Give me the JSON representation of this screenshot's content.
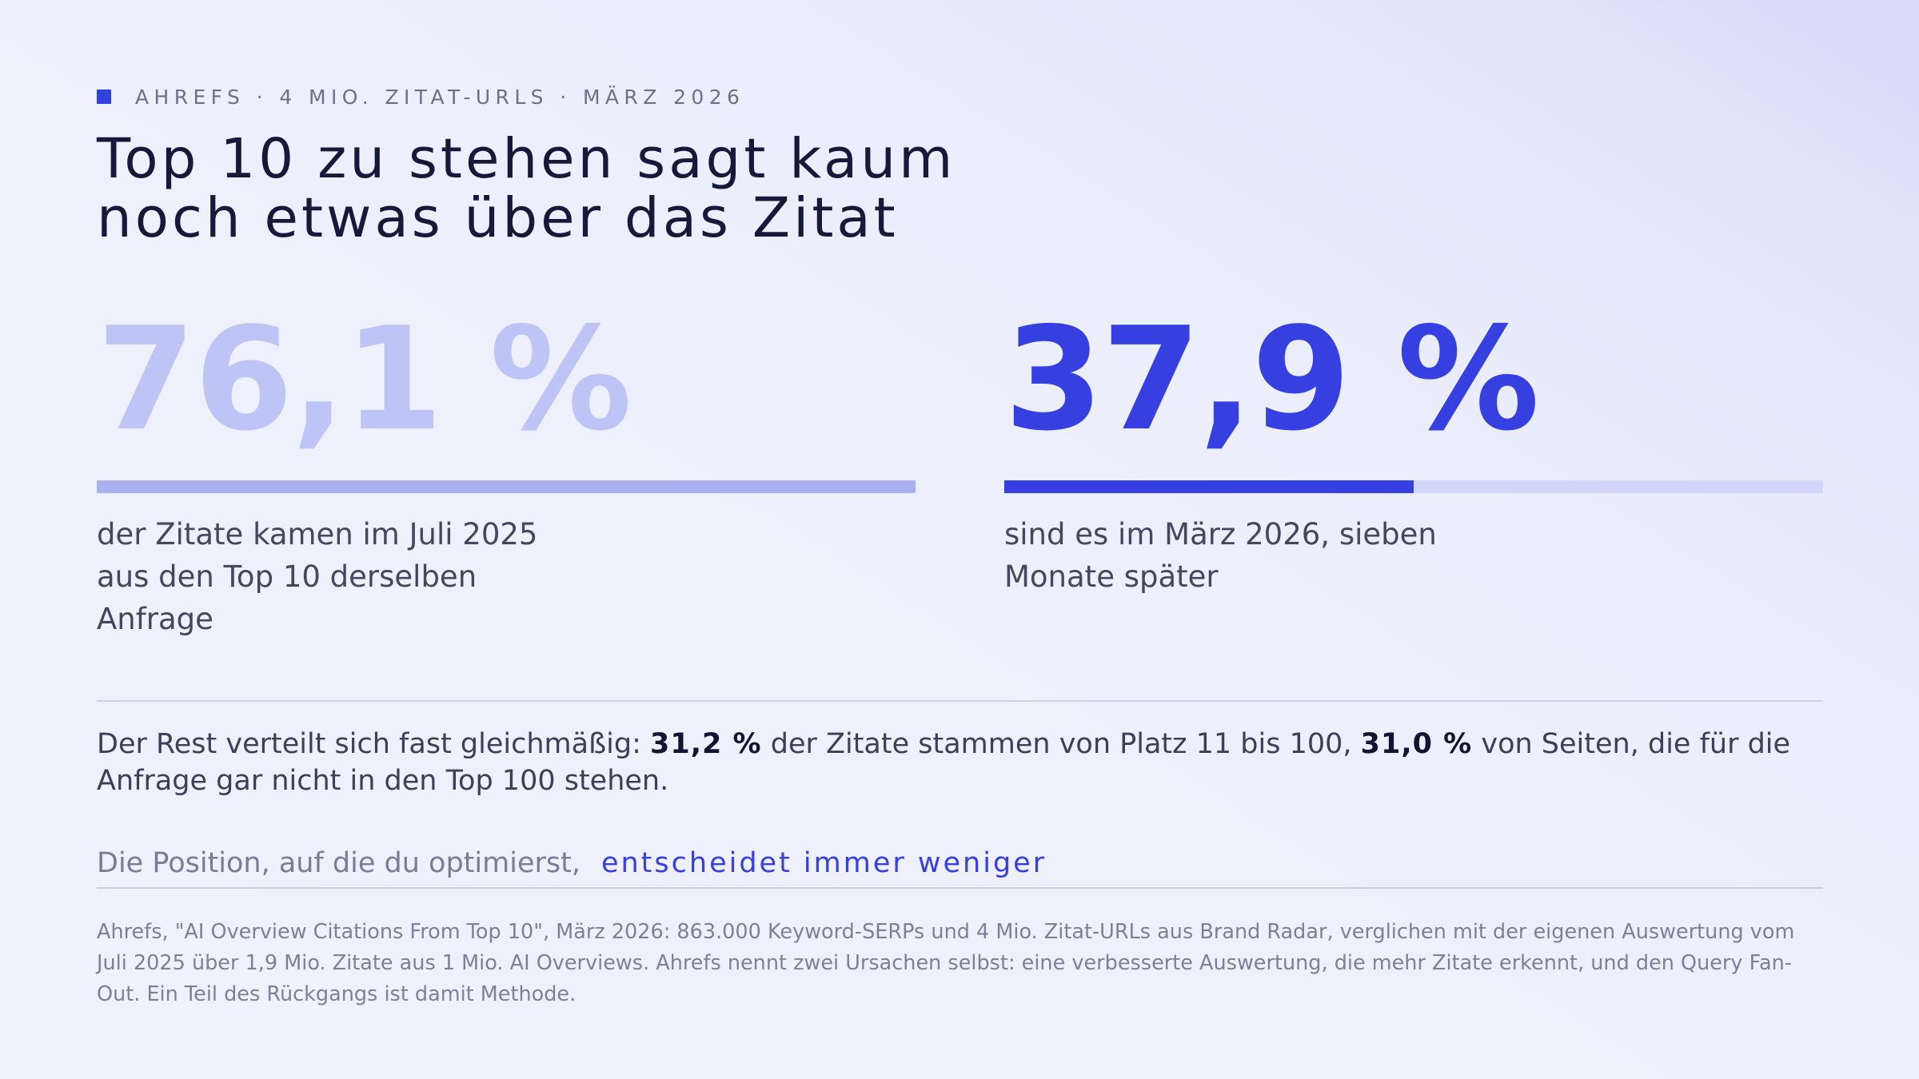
{
  "kicker": {
    "text": "AHREFS · 4 MIO. ZITAT-URLS · MÄRZ 2026",
    "accent_color": "#3340e0"
  },
  "headline": {
    "line1": "Top 10 zu stehen sagt kaum",
    "line2": "noch etwas über das Zitat"
  },
  "stats": [
    {
      "value": "76,1 %",
      "percent": 76.1,
      "bar_fill_fraction": 1.0,
      "color": "#bfc4f6",
      "description_lines": [
        "der Zitate kamen im Juli 2025",
        "aus den Top 10 derselben",
        "Anfrage"
      ]
    },
    {
      "value": "37,9 %",
      "percent": 37.9,
      "bar_fill_fraction": 0.5,
      "color": "#3640e0",
      "description_lines": [
        "sind es im März 2026, sieben",
        "Monate später"
      ]
    }
  ],
  "summary": {
    "part1": "Der Rest verteilt sich fast gleichmäßig: ",
    "highlight1": "31,2 %",
    "part2": " der Zitate stammen von Platz 11 bis 100, ",
    "highlight2": "31,0 %",
    "part3": " von Seiten, die für die Anfrage gar nicht in den Top 100 stehen."
  },
  "punchline": {
    "lead": "Die Position, auf die du optimierst,",
    "accent": "entscheidet immer weniger"
  },
  "footnote": "Ahrefs, \"AI Overview Citations From Top 10\", März 2026: 863.000 Keyword-SERPs und 4 Mio. Zitat-URLs aus Brand Radar, verglichen mit der eigenen Auswertung vom Juli 2025 über 1,9 Mio. Zitate aus 1 Mio. AI Overviews. Ahrefs nennt zwei Ursachen selbst: eine verbesserte Auswertung, die mehr Zitate erkennt, und den Query Fan-Out. Ein Teil des Rückgangs ist damit Methode."
}
